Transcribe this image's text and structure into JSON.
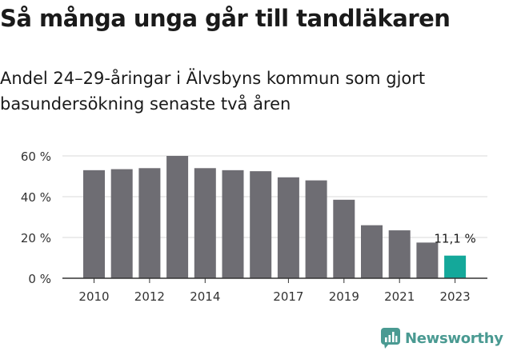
{
  "header": {
    "title": "Så många unga går till tandläkaren",
    "subtitle": "Andel 24–29-åringar i Älvsbyns kommun som gjort basundersökning senaste två åren"
  },
  "brand": {
    "name": "Newsworthy",
    "icon": "newsworthy-logo-icon",
    "color": "#4a9a92"
  },
  "colors": {
    "bar": "#6e6d73",
    "highlight": "#14a89a",
    "grid": "#d9d9d9",
    "axis": "#333333"
  },
  "chart_data": {
    "type": "bar",
    "x": [
      2010,
      2011,
      2012,
      2013,
      2014,
      2015,
      2016,
      2017,
      2018,
      2019,
      2020,
      2021,
      2022,
      2023
    ],
    "values": [
      53,
      53.5,
      54,
      60,
      54,
      53,
      52.5,
      49.5,
      48,
      38.5,
      26,
      23.5,
      17.5,
      11.1
    ],
    "unit": "%",
    "highlight_index": 13,
    "highlight_label": "11,1 %",
    "ylim": [
      0,
      60
    ],
    "yticks": [
      0,
      20,
      40,
      60
    ],
    "ytick_labels": [
      "0 %",
      "20 %",
      "40 %",
      "60 %"
    ],
    "xtick_labels": [
      "2010",
      "2012",
      "2014",
      "2017",
      "2019",
      "2021",
      "2023"
    ],
    "xtick_years": [
      2010,
      2012,
      2014,
      2017,
      2019,
      2021,
      2023
    ],
    "grid": true
  }
}
